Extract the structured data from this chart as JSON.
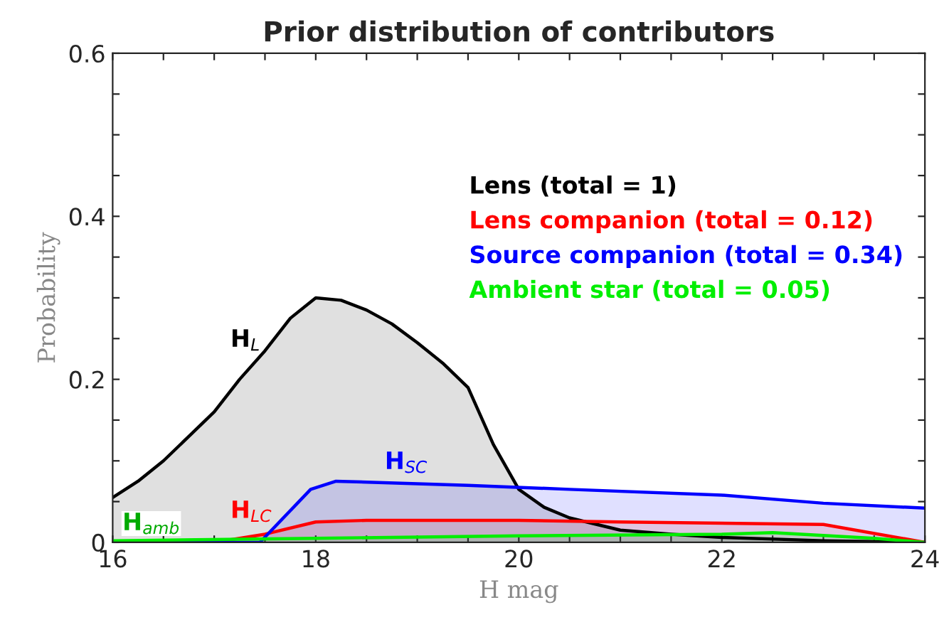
{
  "chart_data": {
    "type": "area",
    "title": "Prior distribution of contributors",
    "xlabel": "H mag",
    "ylabel": "Probability",
    "xlim": [
      16,
      24
    ],
    "ylim": [
      0,
      0.6
    ],
    "xticks": [
      16,
      {
        "value": 16.5,
        "label": null
      },
      {
        "value": 17,
        "label": null
      },
      {
        "value": 17.5,
        "label": null
      },
      18,
      {
        "value": 18.5,
        "label": null
      },
      {
        "value": 19,
        "label": null
      },
      {
        "value": 19.5,
        "label": null
      },
      20,
      {
        "value": 20.5,
        "label": null
      },
      {
        "value": 21,
        "label": null
      },
      {
        "value": 21.5,
        "label": null
      },
      22,
      {
        "value": 22.5,
        "label": null
      },
      {
        "value": 23,
        "label": null
      },
      {
        "value": 23.5,
        "label": null
      },
      24
    ],
    "yticks": [
      0,
      {
        "value": 0.05,
        "label": null
      },
      {
        "value": 0.1,
        "label": null
      },
      {
        "value": 0.15,
        "label": null
      },
      0.2,
      {
        "value": 0.25,
        "label": null
      },
      {
        "value": 0.3,
        "label": null
      },
      {
        "value": 0.35,
        "label": null
      },
      0.4,
      {
        "value": 0.45,
        "label": null
      },
      {
        "value": 0.5,
        "label": null
      },
      {
        "value": 0.55,
        "label": null
      },
      0.6
    ],
    "series": [
      {
        "name": "Lens (total = 1)",
        "color": "#000000",
        "x": [
          16,
          16.25,
          16.5,
          16.75,
          17,
          17.25,
          17.5,
          17.75,
          18,
          18.25,
          18.5,
          18.75,
          19,
          19.25,
          19.5,
          19.75,
          20,
          20.25,
          20.5,
          21,
          21.5,
          22,
          23,
          24
        ],
        "values": [
          0.055,
          0.075,
          0.1,
          0.13,
          0.16,
          0.2,
          0.235,
          0.275,
          0.3,
          0.297,
          0.285,
          0.268,
          0.245,
          0.22,
          0.19,
          0.12,
          0.065,
          0.043,
          0.03,
          0.015,
          0.01,
          0.006,
          0.002,
          0.0
        ]
      },
      {
        "name": "Lens companion (total = 0.12)",
        "color": "#ff0000",
        "x": [
          16,
          17,
          17.5,
          18,
          18.5,
          20,
          21,
          23,
          24
        ],
        "values": [
          0.0,
          0.0,
          0.01,
          0.025,
          0.027,
          0.027,
          0.025,
          0.022,
          0.0
        ]
      },
      {
        "name": "Source companion (total = 0.34)",
        "color": "#0000ff",
        "x": [
          16,
          17.45,
          17.95,
          18.2,
          19.5,
          20.5,
          22,
          23,
          24
        ],
        "values": [
          0.0,
          0.0,
          0.065,
          0.075,
          0.07,
          0.065,
          0.058,
          0.048,
          0.042
        ]
      },
      {
        "name": "Ambient star (total = 0.05)",
        "color": "#00ee00",
        "x": [
          16,
          18,
          20,
          22,
          22.5,
          23.5,
          24
        ],
        "values": [
          0.002,
          0.005,
          0.008,
          0.01,
          0.012,
          0.005,
          0.0
        ]
      }
    ],
    "annotations": [
      "H$_{L}$",
      "H$_{LC}$",
      "H$_{SC}$",
      "H$_{amb}$"
    ],
    "legend": "right"
  }
}
